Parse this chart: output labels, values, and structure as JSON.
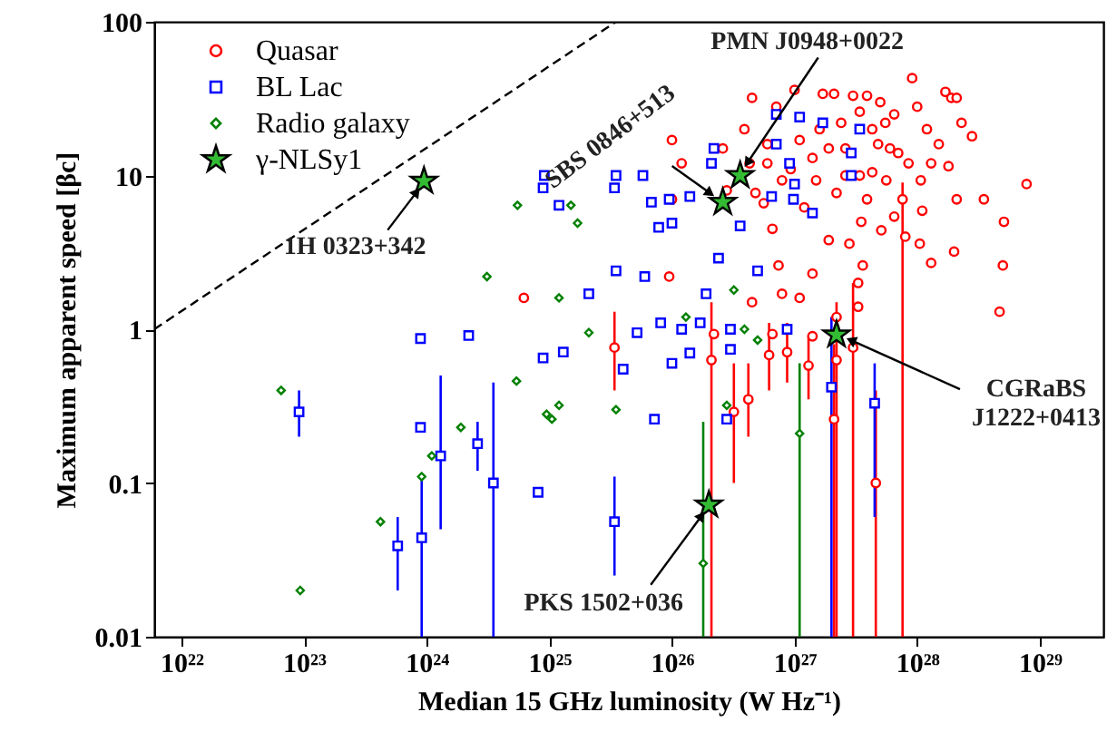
{
  "chart_data": {
    "type": "scatter",
    "xlabel": "Median 15 GHz luminosity (W Hz⁻¹)",
    "ylabel": "Maximum apparent speed [βc]",
    "log": "xy",
    "grid": false,
    "legend": "top left",
    "xlim": [
      6e+21,
      3.3e+29
    ],
    "ylim": [
      0.01,
      100
    ],
    "xticks": [
      {
        "value": 1e+22,
        "label": "10²²"
      },
      {
        "value": 1e+23,
        "label": "10²³"
      },
      {
        "value": 1e+24,
        "label": "10²⁴"
      },
      {
        "value": 1e+25,
        "label": "10²⁵"
      },
      {
        "value": 1e+26,
        "label": "10²⁶"
      },
      {
        "value": 1e+27,
        "label": "10²⁷"
      },
      {
        "value": 1e+28,
        "label": "10²⁸"
      },
      {
        "value": 1e+29,
        "label": "10²⁹"
      }
    ],
    "yticks": [
      0.01,
      0.1,
      1,
      10,
      100
    ],
    "series": [
      {
        "name": "Quasar",
        "color": "#ff0000",
        "marker": "circle",
        "x": [
          4.5e+26,
          7.1e+26,
          1e+27,
          1.7e+27,
          2.1e+27,
          3e+27,
          3.9e+27,
          9.1e+27,
          1.7e+28,
          1.9e+28,
          2.1e+28,
          2.3e+28,
          2.8e+28,
          7.8e+28,
          3.5e+28,
          5.1e+28,
          2e+28,
          1.3e+28,
          5e+28,
          4.7e+28,
          1e+26,
          1.2e+26,
          1e+26,
          2.6e+26,
          3.9e+26,
          4.3e+26,
          5.6e+26,
          6.6e+26,
          7.4e+26,
          7.9e+26,
          1.1e+27,
          1.4e+27,
          1.9e+27,
          2.8e+27,
          3.3e+27,
          3.6e+27,
          3.3e+27,
          5.1e+27,
          6.5e+27,
          1.1e+28,
          1.3e+28,
          8.5e+27,
          6e+27,
          5.5e+27,
          4.3e+27,
          3.4e+27,
          2.4e+27,
          1.9e+27,
          1.4e+27,
          1.1e+27,
          9.3e+26,
          1.5e+27,
          2.2e+27,
          3.9e+27,
          5.6e+27,
          1.07e+28,
          1.8e+28,
          2.1e+28,
          1.05e+28,
          4.8e+26,
          6e+26,
          7.9e+26,
          1.2e+27,
          2.2e+27,
          1.4e+27,
          4.5e+26,
          6.6e+26,
          9.5e+25,
          2.2e+26,
          2.6e+27,
          3.4e+27,
          4.3e+27,
          4.8e+27,
          6.2e+24,
          5e+27,
          6.5e+27,
          7e+27,
          1.2e+28,
          1.5e+28,
          8e+27,
          3.5e+27,
          2.6e+27,
          1.6e+27,
          1e+28,
          6e+26,
          2.8e+26,
          7.6e+27,
          2.1e+26,
          3.2e+26,
          4.2e+26,
          6.2e+26,
          8.7e+26,
          1.3e+27,
          2.1e+27,
          2.2e+27,
          3e+27,
          4.6e+27,
          3.4e+25
        ],
        "values": [
          32,
          28,
          36,
          34,
          34,
          33,
          33,
          43,
          35,
          32,
          32,
          22,
          18,
          8.8,
          7,
          5,
          3.2,
          2.7,
          2.6,
          1.3,
          17,
          12,
          7,
          15,
          20,
          12,
          6.6,
          4.5,
          2.6,
          1.7,
          1.6,
          2.3,
          3.8,
          3.6,
          2,
          2.6,
          1.4,
          4.4,
          5.4,
          5.9,
          12,
          12,
          15,
          22,
          20,
          26,
          22,
          15,
          13,
          17,
          11,
          9.3,
          7.7,
          7,
          9.3,
          9.3,
          11.5,
          7,
          3.6,
          7.7,
          16,
          9.3,
          6.2,
          1.2,
          0.9,
          1.5,
          0.93,
          2.2,
          0.93,
          10,
          10,
          10.5,
          16,
          1.6,
          30,
          25,
          14,
          20,
          16,
          4,
          5,
          15,
          20,
          28,
          12,
          8,
          7,
          0.63,
          0.29,
          0.35,
          0.68,
          0.71,
          0.58,
          0.26,
          0.63,
          0.76,
          0.1,
          0.76
        ],
        "errors": [
          null,
          null,
          null,
          null,
          null,
          null,
          null,
          null,
          null,
          null,
          null,
          null,
          null,
          null,
          null,
          null,
          null,
          null,
          null,
          null,
          null,
          null,
          null,
          null,
          null,
          null,
          null,
          null,
          null,
          null,
          null,
          null,
          null,
          null,
          null,
          null,
          null,
          null,
          null,
          null,
          null,
          null,
          null,
          null,
          null,
          null,
          null,
          null,
          null,
          null,
          null,
          null,
          null,
          null,
          null,
          null,
          null,
          null,
          null,
          null,
          null,
          null,
          null,
          null,
          null,
          null,
          null,
          null,
          null,
          null,
          null,
          null,
          null,
          null,
          null,
          null,
          null,
          null,
          null,
          null,
          null,
          null,
          null,
          null,
          null,
          null,
          [
            0.01,
            9
          ],
          [
            0.01,
            1.5
          ],
          [
            0.1,
            0.6
          ],
          [
            0.2,
            0.6
          ],
          [
            0.4,
            1.1
          ],
          [
            0.45,
            1.1
          ],
          [
            0.35,
            0.9
          ],
          [
            0.01,
            0.8
          ],
          [
            0.01,
            1.5
          ],
          [
            0.01,
            2
          ],
          [
            0.01,
            0.4
          ],
          [
            0.4,
            1.3
          ]
        ]
      },
      {
        "name": "BL Lac",
        "color": "#0000ff",
        "marker": "square",
        "x": [
          9.1e+24,
          8.9e+24,
          1.2e+25,
          3.5e+25,
          3.4e+25,
          3.5e+25,
          2.1e+25,
          8.9e+23,
          2.2e+24,
          8.9e+24,
          1.3e+25,
          7.1e+26,
          1.1e+27,
          1.7e+27,
          3.4e+27,
          2.2e+26,
          2.1e+26,
          7.1e+26,
          9.1e+26,
          2.9e+27,
          2.9e+27,
          1e+27,
          1.4e+26,
          9.5e+25,
          6.5e+26,
          9.8e+26,
          1.4e+27,
          3.6e+26,
          6.8e+25,
          7.8e+25,
          1e+26,
          5.8e+25,
          2.4e+26,
          5e+26,
          1.9e+26,
          6e+25,
          8.1e+25,
          5.2e+25,
          1.2e+26,
          1.7e+26,
          3e+26,
          8.7e+26,
          1e+26,
          1.4e+26,
          3e+26,
          7.2e+25,
          2.8e+26,
          4e+25,
          8.9e+23,
          8.1e+24,
          2e+27,
          4.5e+27,
          9.1e+22,
          1.3e+24,
          9.1e+23,
          5.8e+23,
          2.6e+24,
          3.5e+24,
          3.4e+25
        ],
        "values": [
          10,
          8.3,
          6.4,
          10,
          8.3,
          2.4,
          1.7,
          0.87,
          0.91,
          0.65,
          0.71,
          25,
          24,
          22,
          20,
          15,
          12,
          16,
          12,
          14,
          10,
          8.8,
          7.3,
          7,
          7.3,
          7,
          5.7,
          4.7,
          6.7,
          4.6,
          4.9,
          10,
          2.9,
          2.4,
          1.7,
          2.2,
          1.1,
          0.95,
          1,
          1.1,
          1,
          1,
          0.6,
          0.7,
          0.74,
          0.26,
          0.26,
          0.55,
          0.23,
          0.087,
          0.42,
          0.33,
          0.29,
          0.15,
          0.044,
          0.039,
          0.18,
          0.1,
          0.056
        ],
        "errors": [
          null,
          null,
          null,
          null,
          null,
          null,
          null,
          null,
          null,
          null,
          null,
          null,
          null,
          null,
          null,
          null,
          null,
          null,
          null,
          null,
          null,
          null,
          null,
          null,
          null,
          null,
          null,
          null,
          null,
          null,
          null,
          null,
          null,
          null,
          null,
          null,
          null,
          null,
          null,
          null,
          null,
          null,
          null,
          null,
          null,
          null,
          null,
          null,
          null,
          null,
          [
            0.01,
            1.2
          ],
          [
            0.06,
            0.6
          ],
          [
            0.2,
            0.4
          ],
          [
            0.05,
            0.5
          ],
          [
            0.01,
            0.11
          ],
          [
            0.02,
            0.06
          ],
          [
            0.12,
            0.25
          ],
          [
            0.01,
            0.45
          ],
          [
            0.025,
            0.11
          ]
        ]
      },
      {
        "name": "Radio galaxy",
        "color": "#008000",
        "marker": "diamond",
        "x": [
          5.5e+24,
          1.5e+25,
          1.7e+25,
          3.1e+24,
          1.2e+25,
          2.1e+25,
          3.2e+26,
          3.9e+26,
          5e+26,
          1.3e+26,
          6.5e+22,
          9.3e+22,
          4.2e+23,
          9.1e+23,
          1.1e+24,
          1.9e+24,
          5.4e+24,
          9.5e+24,
          1.05e+25,
          1.2e+25,
          3.5e+25,
          2.8e+26,
          1.1e+27,
          1.8e+26
        ],
        "values": [
          6.4,
          6.4,
          4.9,
          2.2,
          1.6,
          0.95,
          1.8,
          1.0,
          0.85,
          1.2,
          0.4,
          0.02,
          0.056,
          0.11,
          0.15,
          0.23,
          0.46,
          0.28,
          0.26,
          0.32,
          0.3,
          0.32,
          0.21,
          0.03
        ],
        "errors": [
          null,
          null,
          null,
          null,
          null,
          null,
          null,
          null,
          null,
          null,
          null,
          null,
          null,
          null,
          null,
          null,
          null,
          null,
          null,
          null,
          null,
          null,
          [
            0.01,
            0.6
          ],
          [
            0.01,
            0.25
          ]
        ]
      },
      {
        "name": "γ-NLSy1",
        "color": "#33bb33",
        "marker": "star",
        "x": [
          9.5e+23,
          2.6e+26,
          3.6e+26,
          2.2e+27,
          2e+26
        ],
        "values": [
          9.2,
          6.7,
          10,
          0.92,
          0.072
        ]
      },
      {
        "type": "line",
        "color": "#000000",
        "line_style": "dashed",
        "x": [
          6e+21,
          3.5e+25
        ],
        "values": [
          1,
          100
        ]
      }
    ],
    "annotations": [
      {
        "text": "1H 0323+342",
        "x": 9.5e+23,
        "y": 9.2
      },
      {
        "text": "SBS 0846+513",
        "x": 2.6e+26,
        "y": 6.7
      },
      {
        "text": "PMN J0948+0022",
        "x": 3.6e+26,
        "y": 10
      },
      {
        "text": "CGRaBS\nJ1222+0413",
        "x": 2.2e+27,
        "y": 0.92
      },
      {
        "text": "PKS 1502+036",
        "x": 2e+26,
        "y": 0.072
      }
    ]
  }
}
